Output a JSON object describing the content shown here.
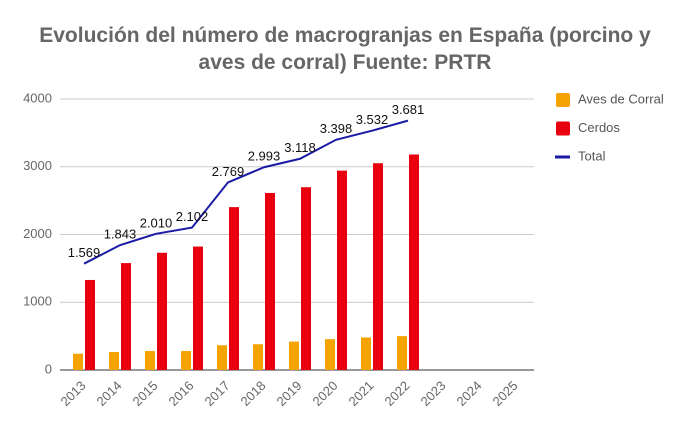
{
  "chart_data": {
    "type": "bar",
    "title": "Evolución del número de macrogranjas en España (porcino y aves de corral) Fuente: PRTR",
    "categories": [
      "2013",
      "2014",
      "2015",
      "2016",
      "2017",
      "2018",
      "2019",
      "2020",
      "2021",
      "2022",
      "2023",
      "2024",
      "2025"
    ],
    "series": [
      {
        "name": "Aves de Corral",
        "color": "#f4a300",
        "type": "bar",
        "values": [
          240,
          265,
          280,
          280,
          365,
          380,
          420,
          455,
          480,
          500,
          null,
          null,
          null
        ]
      },
      {
        "name": "Cerdos",
        "color": "#e8000f",
        "type": "bar",
        "values": [
          1329,
          1578,
          1730,
          1822,
          2404,
          2613,
          2698,
          2943,
          3052,
          3181,
          null,
          null,
          null
        ]
      },
      {
        "name": "Total",
        "color": "#1a1aa6",
        "type": "line",
        "values": [
          1569,
          1843,
          2010,
          2102,
          2769,
          2993,
          3118,
          3398,
          3532,
          3681,
          null,
          null,
          null
        ],
        "value_labels": [
          "1.569",
          "1.843",
          "2.010",
          "2.102",
          "2.769",
          "2.993",
          "3.118",
          "3.398",
          "3.532",
          "3.681",
          null,
          null,
          null
        ]
      }
    ],
    "ylim": [
      0,
      4000
    ],
    "yticks": [
      0,
      1000,
      2000,
      3000,
      4000
    ],
    "grid": true,
    "legend": "right"
  }
}
